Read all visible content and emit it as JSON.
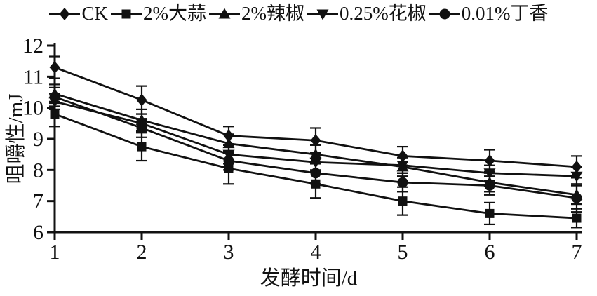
{
  "figure": {
    "background": "#ffffff",
    "ink_color": "#111111"
  },
  "chart_data": {
    "type": "line",
    "title": "",
    "xlabel": "发酵时间/d",
    "ylabel": "咀嚼性/mJ",
    "x": [
      1,
      2,
      3,
      4,
      5,
      6,
      7
    ],
    "xlim": [
      1,
      7
    ],
    "ylim": [
      6,
      12
    ],
    "ytick_step": 1,
    "grid": false,
    "legend_position": "top",
    "error_bars": true,
    "series": [
      {
        "name": "CK",
        "marker": "diamond",
        "values": [
          11.3,
          10.25,
          9.1,
          8.95,
          8.45,
          8.3,
          8.1
        ],
        "errors": [
          0.35,
          0.45,
          0.3,
          0.4,
          0.3,
          0.35,
          0.35
        ]
      },
      {
        "name": "2%大蒜",
        "marker": "square",
        "values": [
          9.8,
          8.75,
          8.05,
          7.55,
          7.0,
          6.6,
          6.45
        ],
        "errors": [
          0.4,
          0.45,
          0.5,
          0.45,
          0.45,
          0.35,
          0.3
        ]
      },
      {
        "name": "2%辣椒",
        "marker": "triangle-up",
        "values": [
          10.45,
          9.6,
          8.85,
          8.5,
          8.1,
          7.6,
          7.2
        ],
        "errors": [
          0.3,
          0.35,
          0.3,
          0.3,
          0.3,
          0.3,
          0.3
        ]
      },
      {
        "name": "0.25%花椒",
        "marker": "triangle-down",
        "values": [
          10.2,
          9.5,
          8.5,
          8.25,
          8.15,
          7.9,
          7.8
        ],
        "errors": [
          0.25,
          0.3,
          0.3,
          0.3,
          0.25,
          0.25,
          0.3
        ]
      },
      {
        "name": "0.01%丁香",
        "marker": "circle",
        "values": [
          10.35,
          9.35,
          8.3,
          7.9,
          7.6,
          7.5,
          7.1
        ],
        "errors": [
          0.3,
          0.3,
          0.3,
          0.35,
          0.3,
          0.3,
          0.45
        ]
      }
    ]
  }
}
